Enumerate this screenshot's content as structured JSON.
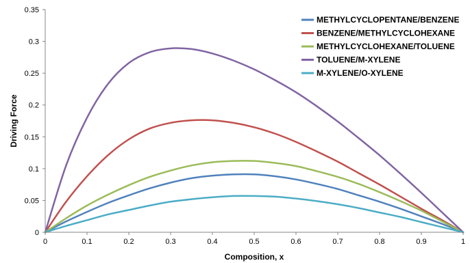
{
  "chart_data": {
    "type": "line",
    "title": "",
    "xlabel": "Composition, x",
    "ylabel": "Driving Force",
    "xlim": [
      0,
      1
    ],
    "ylim": [
      0,
      0.35
    ],
    "x_ticks": [
      "0",
      "0.1",
      "0.2",
      "0.3",
      "0.4",
      "0.5",
      "0.6",
      "0.7",
      "0.8",
      "0.9",
      "1"
    ],
    "y_ticks": [
      "0",
      "0.05",
      "0.1",
      "0.15",
      "0.2",
      "0.25",
      "0.3",
      "0.35"
    ],
    "grid": false,
    "legend_position": "top-right",
    "x": [
      0,
      0.05,
      0.1,
      0.15,
      0.2,
      0.25,
      0.3,
      0.35,
      0.4,
      0.45,
      0.5,
      0.55,
      0.6,
      0.65,
      0.7,
      0.75,
      0.8,
      0.85,
      0.9,
      0.95,
      1
    ],
    "series": [
      {
        "name": "METHYLCYCLOPENTANE/BENZENE",
        "color": "#4f81bd",
        "values": [
          0,
          0.017,
          0.032,
          0.046,
          0.058,
          0.069,
          0.078,
          0.085,
          0.089,
          0.091,
          0.091,
          0.088,
          0.083,
          0.076,
          0.068,
          0.058,
          0.048,
          0.037,
          0.025,
          0.013,
          0
        ]
      },
      {
        "name": "BENZENE/METHYLCYCLOHEXANE",
        "color": "#c0504d",
        "values": [
          0,
          0.048,
          0.088,
          0.121,
          0.146,
          0.163,
          0.172,
          0.176,
          0.176,
          0.172,
          0.165,
          0.155,
          0.142,
          0.127,
          0.111,
          0.093,
          0.075,
          0.056,
          0.037,
          0.019,
          0
        ]
      },
      {
        "name": "METHYLCYCLOHEXANE/TOLUENE",
        "color": "#9bbb59",
        "values": [
          0,
          0.022,
          0.042,
          0.059,
          0.074,
          0.087,
          0.097,
          0.105,
          0.11,
          0.112,
          0.112,
          0.109,
          0.104,
          0.096,
          0.087,
          0.076,
          0.063,
          0.049,
          0.034,
          0.017,
          0
        ]
      },
      {
        "name": "TOLUENE/M-XYLENE",
        "color": "#8064a2",
        "values": [
          0,
          0.105,
          0.18,
          0.233,
          0.266,
          0.283,
          0.289,
          0.288,
          0.281,
          0.27,
          0.256,
          0.239,
          0.22,
          0.198,
          0.174,
          0.148,
          0.121,
          0.092,
          0.062,
          0.031,
          0
        ]
      },
      {
        "name": "M-XYLENE/O-XYLENE",
        "color": "#4bacc6",
        "values": [
          0,
          0.01,
          0.019,
          0.028,
          0.035,
          0.042,
          0.048,
          0.052,
          0.055,
          0.057,
          0.057,
          0.056,
          0.053,
          0.049,
          0.044,
          0.038,
          0.031,
          0.024,
          0.016,
          0.008,
          0
        ]
      }
    ]
  }
}
